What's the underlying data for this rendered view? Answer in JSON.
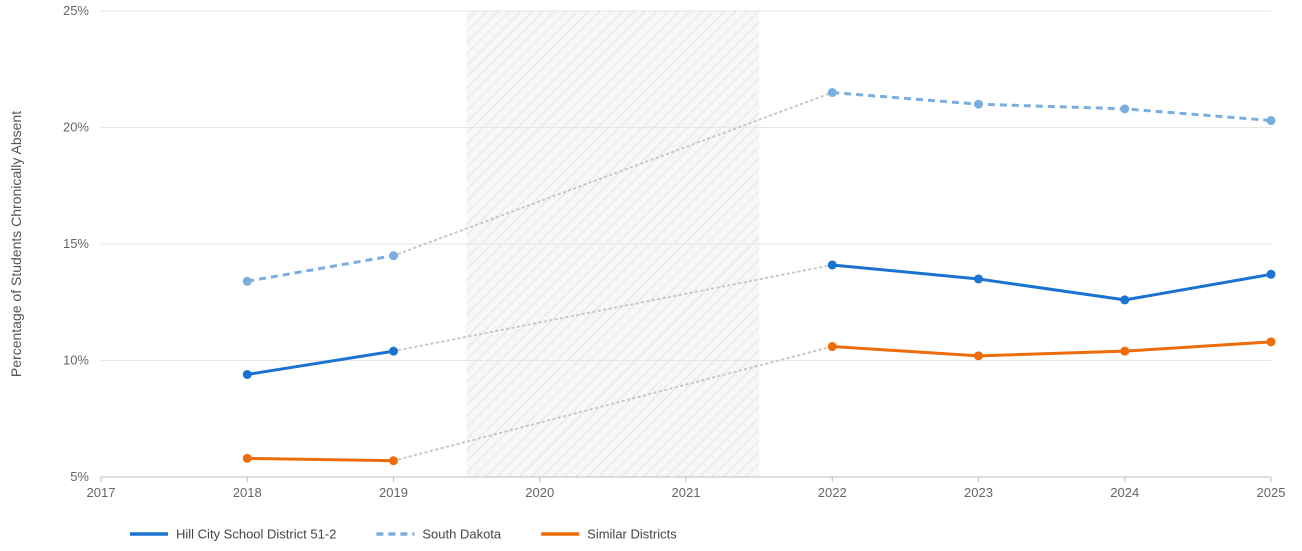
{
  "chart_data": {
    "type": "line",
    "ylabel": "Percentage of Students Chronically Absent",
    "xlabel": "",
    "x": [
      2017,
      2018,
      2019,
      2020,
      2021,
      2022,
      2023,
      2024,
      2025
    ],
    "x_tick_labels": [
      "2017",
      "2018",
      "2019",
      "2020",
      "2021",
      "2022",
      "2023",
      "2024",
      "2025"
    ],
    "xlim": [
      2017,
      2025
    ],
    "ylim": [
      5,
      25
    ],
    "y_ticks": [
      5,
      10,
      15,
      20,
      25
    ],
    "y_tick_labels": [
      "5%",
      "10%",
      "15%",
      "20%",
      "25%"
    ],
    "grid": "horizontal",
    "shaded_region": {
      "x_start": 2019.5,
      "x_end": 2021.5
    },
    "gap_connector": {
      "from_x": 2019,
      "to_x": 2022,
      "style": "dotted",
      "color": "#c8c8c8"
    },
    "legend_position": "bottom-left",
    "series": [
      {
        "name": "Hill City School District 51-2",
        "color": "#1a73d1",
        "style": "solid",
        "x": [
          2018,
          2019,
          2022,
          2023,
          2024,
          2025
        ],
        "values": [
          9.4,
          10.4,
          14.1,
          13.5,
          12.6,
          13.7
        ]
      },
      {
        "name": "South Dakota",
        "color": "#7aaedf",
        "style": "dashed",
        "x": [
          2018,
          2019,
          2022,
          2023,
          2024,
          2025
        ],
        "values": [
          13.4,
          14.5,
          21.5,
          21.0,
          20.8,
          20.3
        ]
      },
      {
        "name": "Similar Districts",
        "color": "#ef6c0a",
        "style": "solid",
        "x": [
          2018,
          2019,
          2022,
          2023,
          2024,
          2025
        ],
        "values": [
          5.8,
          5.7,
          10.6,
          10.2,
          10.4,
          10.8
        ]
      }
    ]
  }
}
